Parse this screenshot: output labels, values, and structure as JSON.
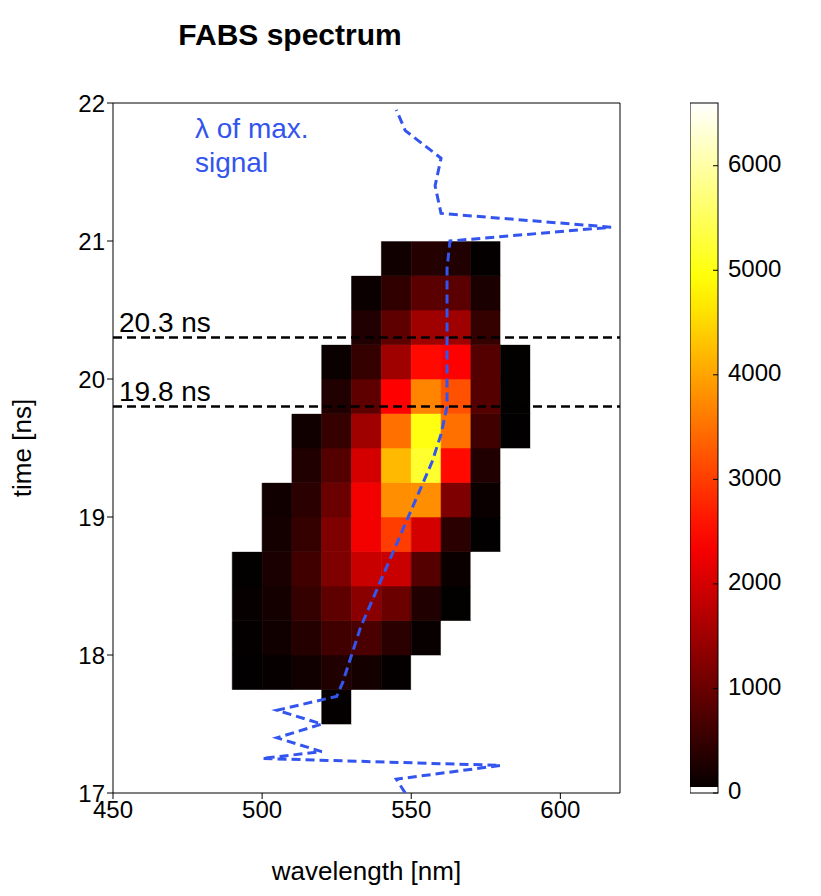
{
  "chart_data": {
    "type": "heatmap",
    "title": "FABS spectrum",
    "x_label": "wavelength [nm]",
    "y_label": "time [ns]",
    "xlim": [
      450,
      620
    ],
    "xticks": [
      450,
      500,
      550,
      600
    ],
    "ylim": [
      17,
      22
    ],
    "yticks": [
      17,
      18,
      19,
      20,
      21,
      22
    ],
    "heatmap": {
      "x": [
        455,
        465,
        475,
        485,
        495,
        505,
        515,
        525,
        535,
        545,
        555,
        565,
        575,
        585,
        595,
        605,
        615
      ],
      "y": [
        17.125,
        17.375,
        17.625,
        17.875,
        18.125,
        18.375,
        18.625,
        18.875,
        19.125,
        19.375,
        19.625,
        19.875,
        20.125,
        20.375,
        20.625,
        20.875,
        21.125,
        21.375,
        21.625,
        21.875
      ],
      "cells": [
        [
          0,
          0,
          0,
          0,
          0,
          0,
          0,
          0,
          0,
          0,
          0,
          0,
          0,
          0,
          0,
          0,
          0
        ],
        [
          0,
          0,
          0,
          0,
          0,
          0,
          0,
          0,
          0,
          0,
          0,
          0,
          0,
          0,
          0,
          0,
          0
        ],
        [
          0,
          0,
          0,
          0,
          0,
          0,
          0,
          50,
          0,
          0,
          0,
          0,
          0,
          0,
          0,
          0,
          0
        ],
        [
          0,
          0,
          0,
          0,
          20,
          60,
          150,
          300,
          200,
          50,
          0,
          0,
          0,
          0,
          0,
          0,
          0
        ],
        [
          0,
          0,
          0,
          0,
          50,
          150,
          350,
          600,
          700,
          400,
          80,
          0,
          0,
          0,
          0,
          0,
          0
        ],
        [
          0,
          0,
          0,
          0,
          60,
          200,
          500,
          900,
          1300,
          1000,
          300,
          30,
          0,
          0,
          0,
          0,
          0
        ],
        [
          0,
          0,
          0,
          0,
          30,
          250,
          600,
          1200,
          1900,
          1900,
          800,
          100,
          0,
          0,
          0,
          0,
          0
        ],
        [
          0,
          0,
          0,
          0,
          0,
          200,
          500,
          1200,
          2300,
          3000,
          2000,
          400,
          20,
          0,
          0,
          0,
          0
        ],
        [
          0,
          0,
          0,
          0,
          0,
          150,
          400,
          1000,
          2300,
          3800,
          3800,
          1200,
          100,
          0,
          0,
          0,
          0
        ],
        [
          0,
          0,
          0,
          0,
          0,
          0,
          300,
          800,
          2000,
          4200,
          5200,
          2500,
          300,
          0,
          0,
          0,
          0
        ],
        [
          0,
          0,
          0,
          0,
          0,
          0,
          150,
          500,
          1500,
          3500,
          5000,
          3500,
          600,
          20,
          0,
          0,
          0
        ],
        [
          0,
          0,
          0,
          0,
          0,
          0,
          0,
          300,
          900,
          2400,
          3700,
          3200,
          800,
          30,
          0,
          0,
          0
        ],
        [
          0,
          0,
          0,
          0,
          0,
          0,
          0,
          100,
          500,
          1500,
          2500,
          2400,
          800,
          30,
          0,
          0,
          0
        ],
        [
          0,
          0,
          0,
          0,
          0,
          0,
          0,
          0,
          300,
          900,
          1500,
          1500,
          500,
          0,
          0,
          0,
          0
        ],
        [
          0,
          0,
          0,
          0,
          0,
          0,
          0,
          0,
          100,
          450,
          850,
          850,
          250,
          0,
          0,
          0,
          0
        ],
        [
          0,
          0,
          0,
          0,
          0,
          0,
          0,
          0,
          0,
          150,
          350,
          300,
          50,
          0,
          0,
          0,
          0
        ],
        [
          0,
          0,
          0,
          0,
          0,
          0,
          0,
          0,
          0,
          0,
          0,
          0,
          0,
          0,
          0,
          0,
          0
        ],
        [
          0,
          0,
          0,
          0,
          0,
          0,
          0,
          0,
          0,
          0,
          0,
          0,
          0,
          0,
          0,
          0,
          0
        ],
        [
          0,
          0,
          0,
          0,
          0,
          0,
          0,
          0,
          0,
          0,
          0,
          0,
          0,
          0,
          0,
          0,
          0
        ],
        [
          0,
          0,
          0,
          0,
          0,
          0,
          0,
          0,
          0,
          0,
          0,
          0,
          0,
          0,
          0,
          0,
          0
        ]
      ]
    },
    "colorbar": {
      "lim": [
        0,
        6600
      ],
      "ticks": [
        0,
        1000,
        2000,
        3000,
        4000,
        5000,
        6000
      ]
    },
    "series": [
      {
        "name": "λ of max. signal",
        "color": "#3355ee",
        "line_style": "dashed",
        "x": [
          548,
          545,
          580,
          500,
          520,
          505,
          520,
          505,
          525,
          527,
          530,
          533,
          537,
          541,
          545,
          549,
          553,
          557,
          560,
          562,
          562,
          562,
          562,
          562,
          562,
          563,
          617,
          560,
          558,
          560,
          548,
          545
        ],
        "y": [
          17.0,
          17.1,
          17.2,
          17.25,
          17.3,
          17.4,
          17.5,
          17.6,
          17.7,
          17.8,
          18.0,
          18.2,
          18.4,
          18.6,
          18.8,
          19.0,
          19.2,
          19.4,
          19.6,
          19.8,
          20.0,
          20.2,
          20.4,
          20.6,
          20.8,
          21.0,
          21.1,
          21.2,
          21.4,
          21.6,
          21.8,
          21.95
        ]
      }
    ],
    "hlines": [
      {
        "y": 20.3,
        "label": "20.3 ns",
        "color": "#000000",
        "line_style": "dashed"
      },
      {
        "y": 19.8,
        "label": "19.8 ns",
        "color": "#000000",
        "line_style": "dashed"
      }
    ]
  }
}
